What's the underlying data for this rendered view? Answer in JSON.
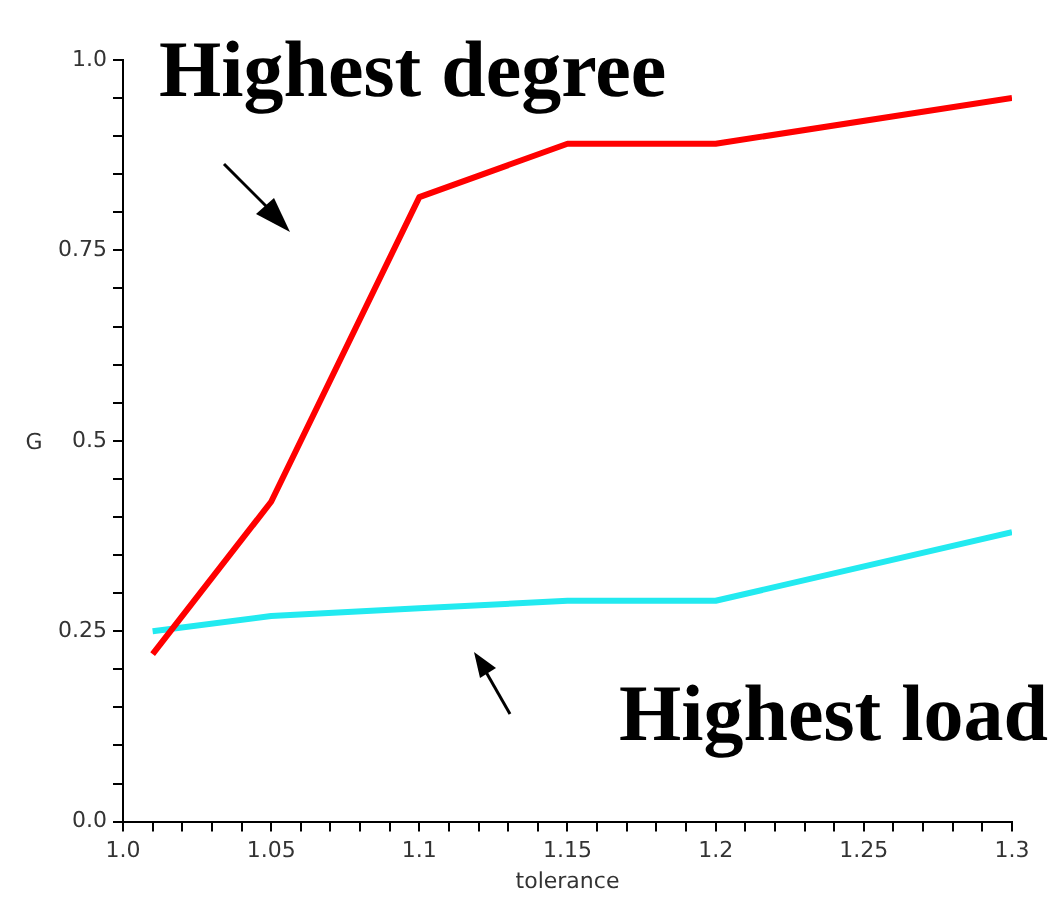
{
  "chart_data": {
    "type": "line",
    "xlabel": "tolerance",
    "ylabel": "G",
    "annotations": [
      "Highest degree",
      "Highest load"
    ],
    "x": [
      1.01,
      1.05,
      1.1,
      1.15,
      1.2,
      1.3
    ],
    "series": [
      {
        "color": "#ff0000",
        "values": [
          0.22,
          0.42,
          0.82,
          0.89,
          0.89,
          0.95
        ]
      },
      {
        "color": "#22eaf0",
        "values": [
          0.25,
          0.27,
          0.28,
          0.29,
          0.29,
          0.38
        ]
      }
    ],
    "xlim": [
      1.0,
      1.3
    ],
    "xticks": [
      {
        "value": 1.0,
        "label": "1.0"
      },
      {
        "value": 1.01,
        "label": null
      },
      {
        "value": 1.02,
        "label": null
      },
      {
        "value": 1.03,
        "label": null
      },
      {
        "value": 1.04,
        "label": null
      },
      1.05,
      {
        "value": 1.06,
        "label": null
      },
      {
        "value": 1.07,
        "label": null
      },
      {
        "value": 1.08,
        "label": null
      },
      {
        "value": 1.09,
        "label": null
      },
      1.1,
      {
        "value": 1.11,
        "label": null
      },
      {
        "value": 1.12,
        "label": null
      },
      {
        "value": 1.13,
        "label": null
      },
      {
        "value": 1.14,
        "label": null
      },
      1.15,
      {
        "value": 1.16,
        "label": null
      },
      {
        "value": 1.17,
        "label": null
      },
      {
        "value": 1.18,
        "label": null
      },
      {
        "value": 1.19,
        "label": null
      },
      1.2,
      {
        "value": 1.21,
        "label": null
      },
      {
        "value": 1.22,
        "label": null
      },
      {
        "value": 1.23,
        "label": null
      },
      {
        "value": 1.24,
        "label": null
      },
      1.25,
      {
        "value": 1.26,
        "label": null
      },
      {
        "value": 1.27,
        "label": null
      },
      {
        "value": 1.28,
        "label": null
      },
      {
        "value": 1.29,
        "label": null
      },
      1.3
    ],
    "ylim": [
      0,
      1
    ],
    "yticks": [
      {
        "value": 0,
        "label": "0.0"
      },
      {
        "value": 0.05,
        "label": null
      },
      {
        "value": 0.1,
        "label": null
      },
      {
        "value": 0.15,
        "label": null
      },
      {
        "value": 0.2,
        "label": null
      },
      0.25,
      {
        "value": 0.3,
        "label": null
      },
      {
        "value": 0.35,
        "label": null
      },
      {
        "value": 0.4,
        "label": null
      },
      {
        "value": 0.45,
        "label": null
      },
      0.5,
      {
        "value": 0.55,
        "label": null
      },
      {
        "value": 0.6,
        "label": null
      },
      {
        "value": 0.65,
        "label": null
      },
      {
        "value": 0.7,
        "label": null
      },
      0.75,
      {
        "value": 0.8,
        "label": null
      },
      {
        "value": 0.85,
        "label": null
      },
      {
        "value": 0.9,
        "label": null
      },
      {
        "value": 0.95,
        "label": null
      },
      {
        "value": 1,
        "label": "1.0"
      }
    ],
    "grid": false,
    "legend": false,
    "marker": "none",
    "line_style": "solid"
  }
}
